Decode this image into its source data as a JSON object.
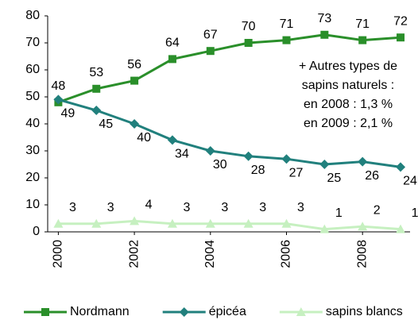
{
  "chart_data": {
    "type": "line",
    "x": [
      2000,
      2001,
      2002,
      2003,
      2004,
      2005,
      2006,
      2007,
      2008,
      2009
    ],
    "series": [
      {
        "name": "Nordmann",
        "color": "#2a8f2a",
        "marker": "square",
        "label_position": "above",
        "values": [
          48,
          53,
          56,
          64,
          67,
          70,
          71,
          73,
          71,
          72
        ]
      },
      {
        "name": "épicéa",
        "color": "#21807d",
        "marker": "diamond",
        "label_position": "below",
        "values": [
          49,
          45,
          40,
          34,
          30,
          28,
          27,
          25,
          26,
          24
        ]
      },
      {
        "name": "sapins blancs",
        "color": "#c6f0c0",
        "marker": "triangle",
        "label_position": "above",
        "values": [
          3,
          3,
          4,
          3,
          3,
          3,
          3,
          1,
          2,
          1
        ]
      }
    ],
    "xlim": [
      1999.72,
      2009.25
    ],
    "xticks": [
      2000,
      2002,
      2004,
      2006,
      2008
    ],
    "ylim": [
      0,
      80
    ],
    "yticks": [
      0,
      10,
      20,
      30,
      40,
      50,
      60,
      70,
      80
    ],
    "grid": false,
    "annotation": [
      "+ Autres types de",
      "sapins naturels :",
      "en 2008 : 1,3 %",
      "en 2009 : 2,1 %"
    ],
    "legend": "bottom"
  }
}
